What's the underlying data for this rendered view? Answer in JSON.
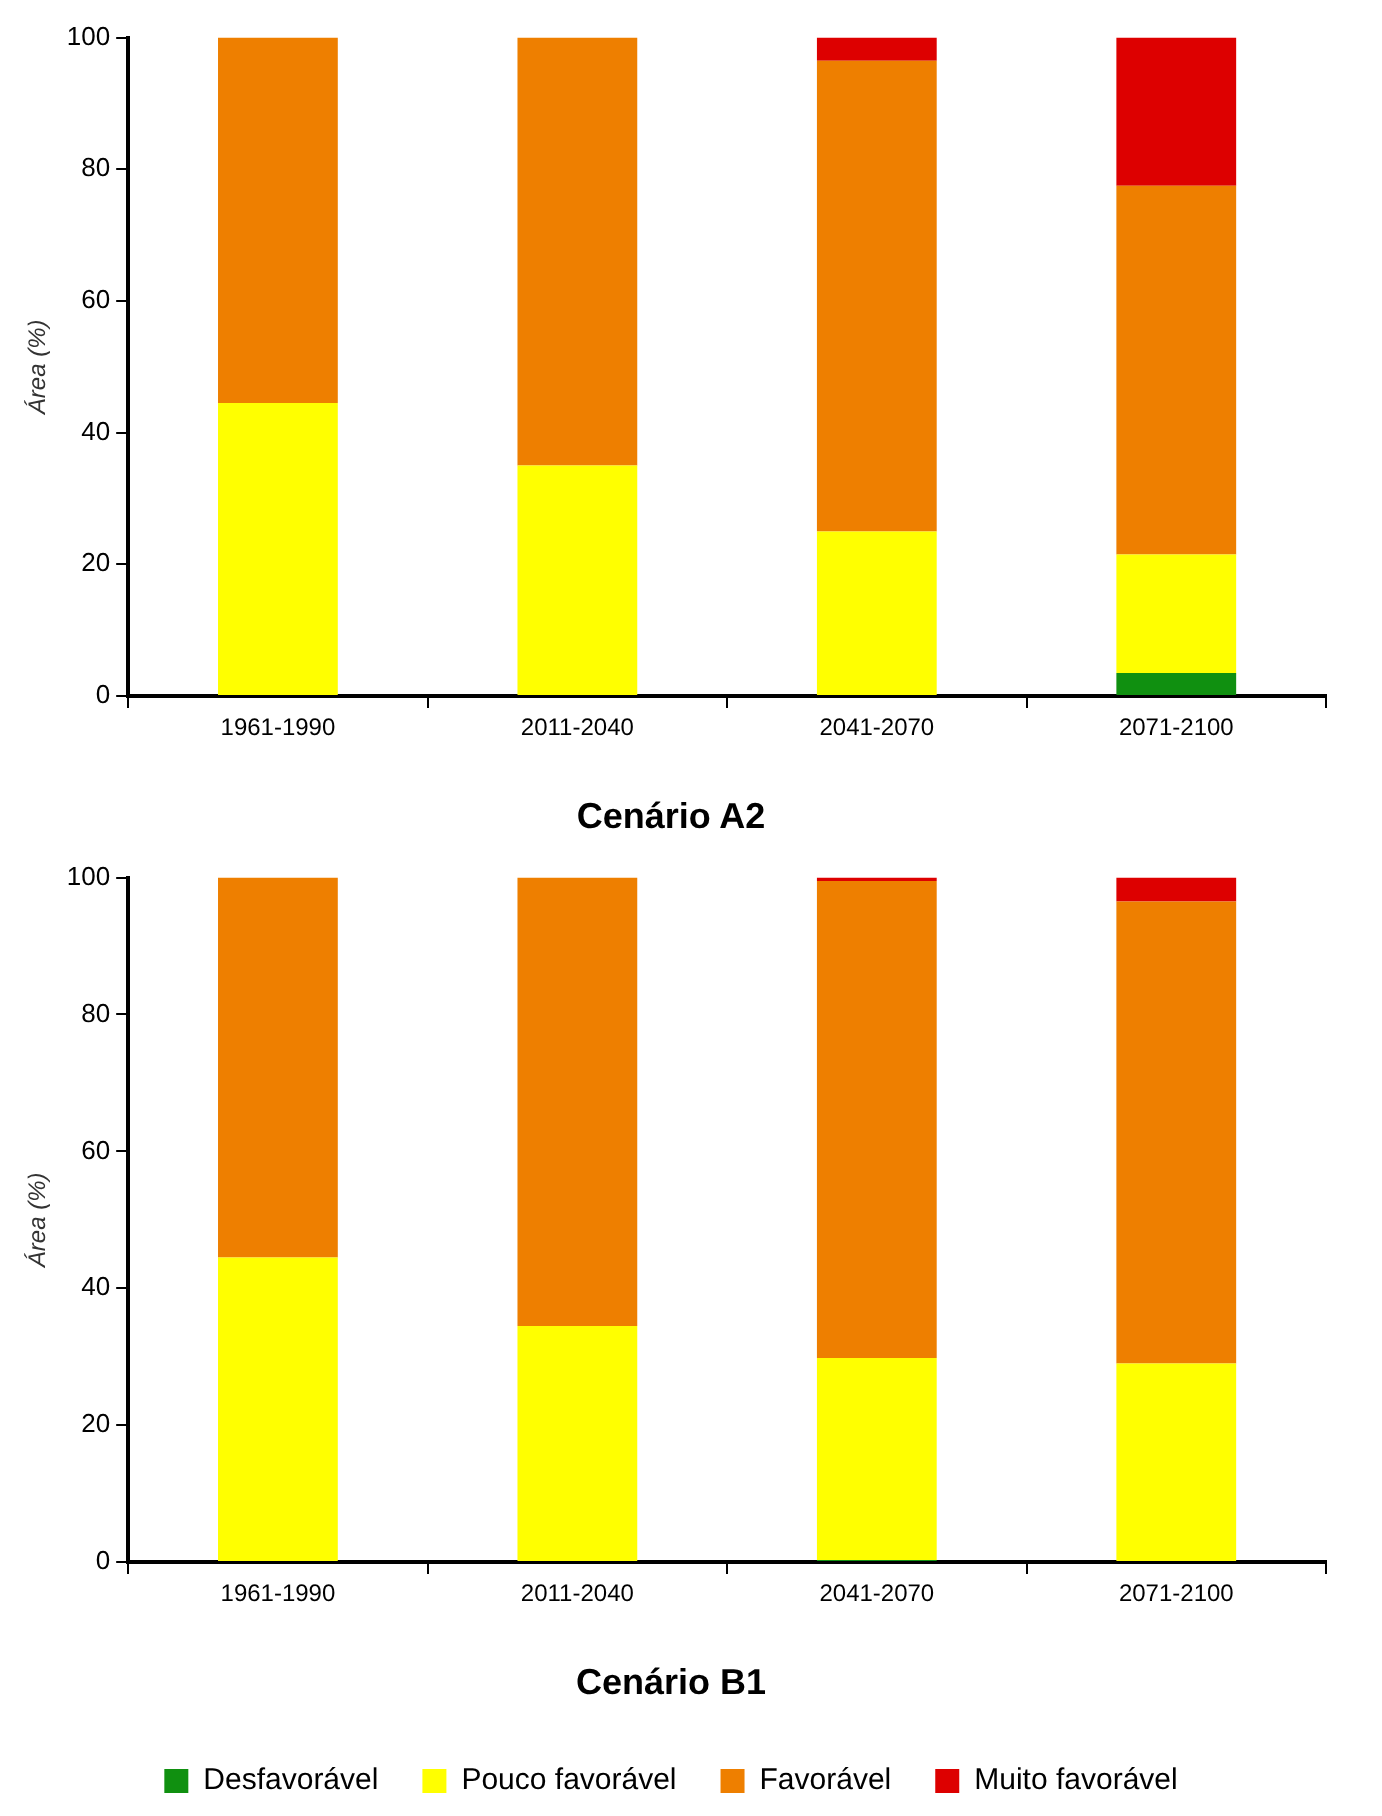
{
  "chart_data": [
    {
      "type": "bar",
      "title": "Cenário A2",
      "ylabel": "Área (%)",
      "categories": [
        "1961-1990",
        "2011-2040",
        "2041-2070",
        "2071-2100"
      ],
      "stacked": true,
      "ylim": [
        0,
        100
      ],
      "yticks": [
        0,
        20,
        40,
        60,
        80,
        100
      ],
      "grid": false,
      "legend": false,
      "series": [
        {
          "color": "#109010",
          "values": [
            0,
            0,
            0,
            3.5
          ]
        },
        {
          "color": "#ffff00",
          "values": [
            44.5,
            35,
            25,
            18
          ]
        },
        {
          "color": "#ee7f00",
          "values": [
            55.5,
            65,
            71.5,
            56
          ]
        },
        {
          "color": "#dd0000",
          "values": [
            0,
            0,
            3.5,
            22.5
          ]
        }
      ]
    },
    {
      "type": "bar",
      "title": "Cenário B1",
      "ylabel": "Área (%)",
      "categories": [
        "1961-1990",
        "2011-2040",
        "2041-2070",
        "2071-2100"
      ],
      "stacked": true,
      "ylim": [
        0,
        100
      ],
      "yticks": [
        0,
        20,
        40,
        60,
        80,
        100
      ],
      "grid": false,
      "legend": "bottom",
      "series": [
        {
          "name": "Desfavorável",
          "color": "#109010",
          "values": [
            0,
            0,
            0.3,
            0
          ]
        },
        {
          "name": "Pouco favorável",
          "color": "#ffff00",
          "values": [
            44.5,
            34.5,
            29.5,
            29
          ]
        },
        {
          "name": "Favorável",
          "color": "#ee7f00",
          "values": [
            55.5,
            65.5,
            69.7,
            67.5
          ]
        },
        {
          "name": "Muito favorável",
          "color": "#dd0000",
          "values": [
            0,
            0,
            0.5,
            3.5
          ]
        }
      ]
    }
  ]
}
